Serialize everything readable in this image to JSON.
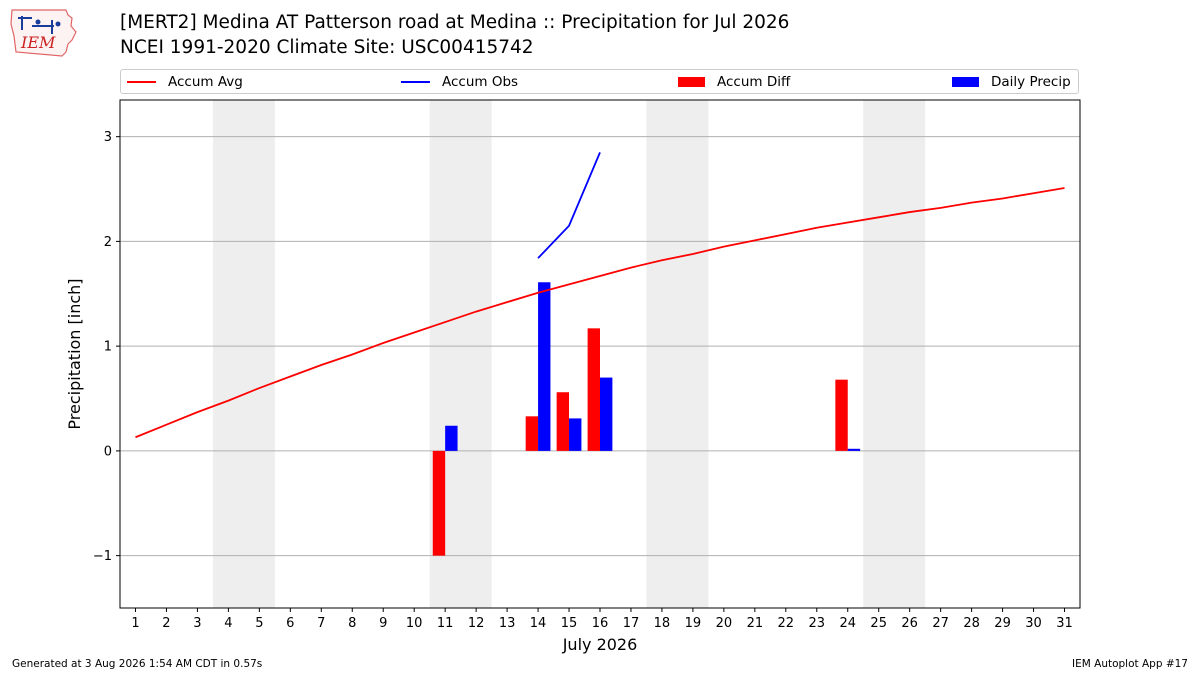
{
  "header": {
    "logo_text": "IEM",
    "title_line1": "[MERT2] Medina  AT Patterson road at Medina :: Precipitation for Jul 2026",
    "title_line2": "NCEI 1991-2020 Climate Site: USC00415742"
  },
  "footer": {
    "left": "Generated at 3 Aug 2026 1:54 AM CDT in 0.57s",
    "right": "IEM Autoplot App #17"
  },
  "colors": {
    "accum_avg": "#ff0000",
    "accum_obs": "#0000ff",
    "accum_diff": "#ff0000",
    "daily_precip": "#0000ff",
    "weekend_shade": "#eeeeee",
    "grid": "#b0b0b0"
  },
  "chart_data": {
    "type": "bar",
    "xlabel": "July 2026",
    "ylabel": "Precipitation [inch]",
    "xlim": [
      0.5,
      31.5
    ],
    "ylim": [
      -1.5,
      3.35
    ],
    "y_ticks": [
      -1,
      0,
      1,
      2,
      3
    ],
    "y_tick_labels": [
      "−1",
      "0",
      "1",
      "2",
      "3"
    ],
    "x_ticks": [
      1,
      2,
      3,
      4,
      5,
      6,
      7,
      8,
      9,
      10,
      11,
      12,
      13,
      14,
      15,
      16,
      17,
      18,
      19,
      20,
      21,
      22,
      23,
      24,
      25,
      26,
      27,
      28,
      29,
      30,
      31
    ],
    "grid": "horizontal",
    "legend_position": "top",
    "weekend_shading": [
      [
        3.5,
        5.5
      ],
      [
        10.5,
        12.5
      ],
      [
        17.5,
        19.5
      ],
      [
        24.5,
        26.5
      ]
    ],
    "legend": [
      "Accum Avg",
      "Accum Obs",
      "Accum Diff",
      "Daily Precip"
    ],
    "series": [
      {
        "name": "Accum Avg",
        "kind": "line",
        "x": [
          1,
          2,
          3,
          4,
          5,
          6,
          7,
          8,
          9,
          10,
          11,
          12,
          13,
          14,
          15,
          16,
          17,
          18,
          19,
          20,
          21,
          22,
          23,
          24,
          25,
          26,
          27,
          28,
          29,
          30,
          31
        ],
        "values": [
          0.13,
          0.25,
          0.37,
          0.48,
          0.6,
          0.71,
          0.82,
          0.92,
          1.03,
          1.13,
          1.23,
          1.33,
          1.42,
          1.51,
          1.59,
          1.67,
          1.75,
          1.82,
          1.88,
          1.95,
          2.01,
          2.07,
          2.13,
          2.18,
          2.23,
          2.28,
          2.32,
          2.37,
          2.41,
          2.46,
          2.51
        ]
      },
      {
        "name": "Accum Obs",
        "kind": "line",
        "x": [
          14,
          15,
          16
        ],
        "values": [
          1.84,
          2.15,
          2.85
        ]
      },
      {
        "name": "Accum Diff",
        "kind": "bar",
        "x": [
          11,
          14,
          15,
          16,
          24
        ],
        "values": [
          -1.0,
          0.33,
          0.56,
          1.17,
          0.68
        ]
      },
      {
        "name": "Daily Precip",
        "kind": "bar",
        "x": [
          11,
          14,
          15,
          16,
          24
        ],
        "values": [
          0.24,
          1.61,
          0.31,
          0.7,
          0.02
        ]
      }
    ]
  }
}
